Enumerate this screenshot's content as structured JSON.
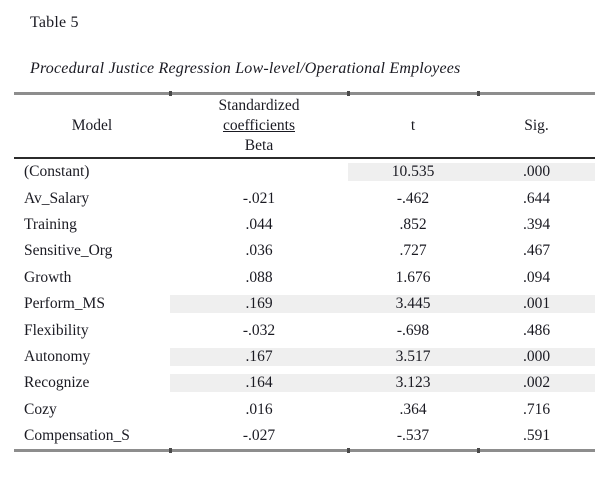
{
  "page": {
    "table_label": "Table 5",
    "table_title": "Procedural Justice Regression Low-level/Operational Employees"
  },
  "table": {
    "header": {
      "model": "Model",
      "coeff_line1": "Standardized",
      "coeff_line2": "coefficients",
      "coeff_line3": "Beta",
      "t": "t",
      "sig": "Sig."
    },
    "rows": [
      {
        "model": "(Constant)",
        "beta": "",
        "t": "10.535",
        "sig": ".000",
        "shaded": true
      },
      {
        "model": "Av_Salary",
        "beta": "-.021",
        "t": "-.462",
        "sig": ".644",
        "shaded": false
      },
      {
        "model": "Training",
        "beta": ".044",
        "t": ".852",
        "sig": ".394",
        "shaded": false
      },
      {
        "model": "Sensitive_Org",
        "beta": ".036",
        "t": ".727",
        "sig": ".467",
        "shaded": false
      },
      {
        "model": "Growth",
        "beta": ".088",
        "t": "1.676",
        "sig": ".094",
        "shaded": false
      },
      {
        "model": "Perform_MS",
        "beta": ".169",
        "t": "3.445",
        "sig": ".001",
        "shaded": true
      },
      {
        "model": "Flexibility",
        "beta": "-.032",
        "t": "-.698",
        "sig": ".486",
        "shaded": false
      },
      {
        "model": "Autonomy",
        "beta": ".167",
        "t": "3.517",
        "sig": ".000",
        "shaded": true
      },
      {
        "model": "Recognize",
        "beta": ".164",
        "t": "3.123",
        "sig": ".002",
        "shaded": true
      },
      {
        "model": "Cozy",
        "beta": ".016",
        "t": ".364",
        "sig": ".716",
        "shaded": false
      },
      {
        "model": "Compensation_S",
        "beta": "-.027",
        "t": "-.537",
        "sig": ".591",
        "shaded": false
      }
    ],
    "colors": {
      "shaded_row": "#efefef",
      "outer_border": "#8d8d8d",
      "header_rule": "#2b2b2b",
      "text": "#1a1a22"
    }
  }
}
